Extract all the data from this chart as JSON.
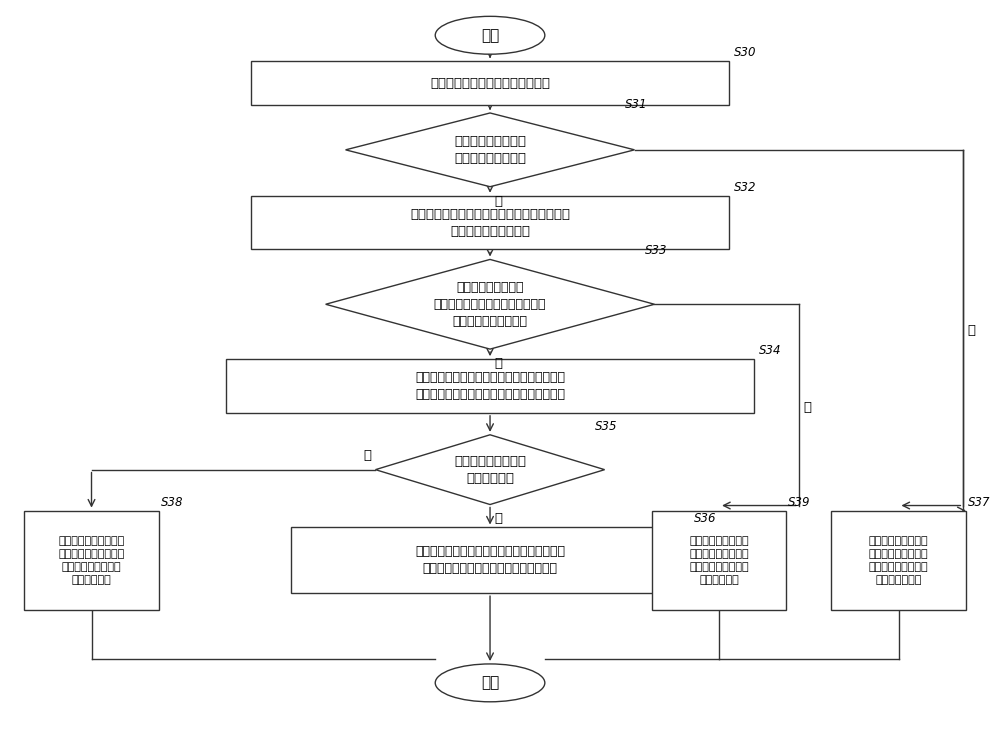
{
  "bg_color": "#ffffff",
  "line_color": "#333333",
  "box_fill": "#ffffff",
  "font_size": 9.5,
  "nodes": {
    "start": {
      "label": "开始",
      "type": "oval"
    },
    "S30": {
      "label": "监测装置采集监测对象的压力信号",
      "type": "rect",
      "step": "S30"
    },
    "S31": {
      "label": "判断监测对象是否在\n内置监测装置的床上",
      "type": "diamond",
      "step": "S31"
    },
    "S32": {
      "label": "检测设定时段内监测对象在床上压力的压力值\n、压力面积和压力位置",
      "type": "rect",
      "step": "S32"
    },
    "S33": {
      "label": "根据算法判断压力的\n压力值、压力面积和压力位置是否\n符合监测对象腿部特征",
      "type": "diamond",
      "step": "S33"
    },
    "S34": {
      "label": "根据设定时段内压力的压力面积和压力位置的\n变化频率和变化幅度确定监测对象的体动状态",
      "type": "rect",
      "step": "S34"
    },
    "S35": {
      "label": "判断监测对象的体动\n状态是否异常",
      "type": "diamond",
      "step": "S35"
    },
    "S36": {
      "label": "生成监测对象有异常体动的风险提示信息，并\n将提示信息推送至与监测装置连接的终端",
      "type": "rect",
      "step": "S36"
    },
    "S38": {
      "label": "生成监测对象正常体动\n的提示信息，并将提示\n信息推送至与监测装\n置连接的终端",
      "type": "rect",
      "step": "S38"
    },
    "S39": {
      "label": "生成监测对象在床的\n提示信息，并将提示\n信息推送至与监测装\n置连接的终端",
      "type": "rect",
      "step": "S39"
    },
    "S37": {
      "label": "生成监测对象不在床\n的提示信息，并将提\n示信息推送至与监测\n装置连接的终端",
      "type": "rect",
      "step": "S37"
    },
    "end": {
      "label": "结束",
      "type": "oval"
    }
  }
}
